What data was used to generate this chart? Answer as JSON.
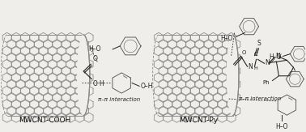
{
  "background_color": "#f0eeeb",
  "label_left": "MWCNT-COOH",
  "label_right": "MWCNT-Py",
  "label_fontsize": 6.5,
  "label_color": "#111111",
  "figsize": [
    3.78,
    1.63
  ],
  "dpi": 100,
  "text_pi_pi": "π–π interaction",
  "nanotube_color": "#888888",
  "bond_color": "#222222"
}
